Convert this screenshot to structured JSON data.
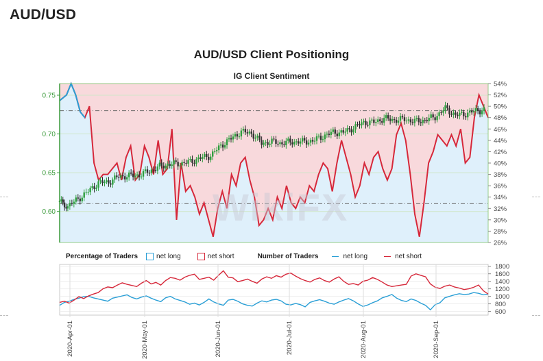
{
  "page": {
    "title": "AUD/USD",
    "watermark": "WikiFX"
  },
  "chart_data": [
    {
      "type": "candlestick+area",
      "title": "AUD/USD Client Positioning",
      "subtitle": "IG Client Sentiment",
      "left_axis": {
        "ticks": [
          "0.75",
          "0.70",
          "0.65",
          "0.60"
        ],
        "values": [
          0.75,
          0.7,
          0.65,
          0.6
        ],
        "ylim": [
          0.56,
          0.765
        ]
      },
      "right_axis": {
        "ticks": [
          "54%",
          "52%",
          "50%",
          "48%",
          "46%",
          "44%",
          "42%",
          "40%",
          "38%",
          "36%",
          "34%",
          "32%",
          "30%",
          "28%",
          "26%"
        ],
        "ylim": [
          26,
          54
        ]
      },
      "reference_levels": [
        0.73,
        0.61
      ],
      "price": [
        [
          0,
          0.612
        ],
        [
          4,
          0.607
        ],
        [
          9,
          0.616
        ],
        [
          14,
          0.626
        ],
        [
          19,
          0.637
        ],
        [
          24,
          0.638
        ],
        [
          29,
          0.645
        ],
        [
          34,
          0.646
        ],
        [
          39,
          0.647
        ],
        [
          44,
          0.652
        ],
        [
          49,
          0.658
        ],
        [
          54,
          0.661
        ],
        [
          59,
          0.662
        ],
        [
          64,
          0.664
        ],
        [
          69,
          0.669
        ],
        [
          74,
          0.672
        ],
        [
          79,
          0.685
        ],
        [
          84,
          0.694
        ],
        [
          89,
          0.703
        ],
        [
          94,
          0.701
        ],
        [
          99,
          0.688
        ],
        [
          104,
          0.69
        ],
        [
          109,
          0.688
        ],
        [
          114,
          0.69
        ],
        [
          119,
          0.69
        ],
        [
          124,
          0.691
        ],
        [
          129,
          0.697
        ],
        [
          134,
          0.702
        ],
        [
          139,
          0.702
        ],
        [
          144,
          0.708
        ],
        [
          149,
          0.715
        ],
        [
          154,
          0.715
        ],
        [
          159,
          0.72
        ],
        [
          164,
          0.718
        ],
        [
          169,
          0.719
        ],
        [
          174,
          0.716
        ],
        [
          179,
          0.718
        ],
        [
          184,
          0.722
        ],
        [
          189,
          0.733
        ],
        [
          194,
          0.724
        ],
        [
          199,
          0.726
        ],
        [
          204,
          0.73
        ],
        [
          209,
          0.731
        ]
      ],
      "net_long_pct": [
        [
          0,
          51
        ],
        [
          3,
          52
        ],
        [
          5,
          54
        ],
        [
          7,
          52
        ],
        [
          9,
          49
        ],
        [
          11,
          48
        ],
        [
          13,
          50
        ],
        [
          15,
          40
        ],
        [
          17,
          37
        ],
        [
          19,
          38
        ],
        [
          21,
          38
        ],
        [
          23,
          39
        ],
        [
          25,
          40
        ],
        [
          27,
          37
        ],
        [
          29,
          41
        ],
        [
          31,
          43
        ],
        [
          33,
          37
        ],
        [
          35,
          38
        ],
        [
          37,
          43
        ],
        [
          39,
          41
        ],
        [
          41,
          38
        ],
        [
          43,
          44
        ],
        [
          45,
          38
        ],
        [
          47,
          39
        ],
        [
          49,
          46
        ],
        [
          51,
          30
        ],
        [
          53,
          40
        ],
        [
          55,
          35
        ],
        [
          57,
          36
        ],
        [
          59,
          34
        ],
        [
          61,
          31
        ],
        [
          63,
          33
        ],
        [
          65,
          30
        ],
        [
          67,
          27
        ],
        [
          69,
          32
        ],
        [
          71,
          35
        ],
        [
          73,
          32
        ],
        [
          75,
          38
        ],
        [
          77,
          36
        ],
        [
          79,
          40
        ],
        [
          81,
          41
        ],
        [
          83,
          37
        ],
        [
          85,
          34
        ],
        [
          87,
          29
        ],
        [
          89,
          30
        ],
        [
          91,
          32
        ],
        [
          93,
          30
        ],
        [
          95,
          34
        ],
        [
          97,
          32
        ],
        [
          99,
          36
        ],
        [
          101,
          33
        ],
        [
          103,
          32
        ],
        [
          105,
          34
        ],
        [
          107,
          33
        ],
        [
          109,
          36
        ],
        [
          111,
          35
        ],
        [
          113,
          38
        ],
        [
          115,
          40
        ],
        [
          117,
          39
        ],
        [
          119,
          35
        ],
        [
          121,
          40
        ],
        [
          123,
          44
        ],
        [
          125,
          41
        ],
        [
          127,
          38
        ],
        [
          129,
          34
        ],
        [
          131,
          36
        ],
        [
          133,
          40
        ],
        [
          135,
          38
        ],
        [
          137,
          41
        ],
        [
          139,
          42
        ],
        [
          141,
          39
        ],
        [
          143,
          37
        ],
        [
          145,
          39
        ],
        [
          147,
          45
        ],
        [
          149,
          47
        ],
        [
          151,
          44
        ],
        [
          153,
          38
        ],
        [
          155,
          31
        ],
        [
          157,
          27
        ],
        [
          159,
          33
        ],
        [
          161,
          40
        ],
        [
          163,
          42
        ],
        [
          165,
          45
        ],
        [
          167,
          44
        ],
        [
          169,
          43
        ],
        [
          171,
          45
        ],
        [
          173,
          43
        ],
        [
          175,
          46
        ],
        [
          177,
          40
        ],
        [
          179,
          41
        ],
        [
          181,
          48
        ],
        [
          183,
          52
        ],
        [
          185,
          50
        ],
        [
          187,
          48
        ]
      ]
    },
    {
      "type": "line",
      "legend": {
        "pct_title": "Percentage of Traders",
        "count_title": "Number of Traders",
        "net_long": "net long",
        "net_short": "net short"
      },
      "x_ticks": [
        "2020-Apr-01",
        "2020-May-01",
        "2020-Jun-01",
        "2020-Jul-01",
        "2020-Aug-01",
        "2020-Sep-01"
      ],
      "y_ticks": [
        "1800",
        "1600",
        "1400",
        "1200",
        "1000",
        "800",
        "600"
      ],
      "ylim": [
        500,
        1850
      ],
      "series": [
        {
          "name": "net long",
          "color": "#2a9fd6",
          "values": [
            760,
            840,
            870,
            920,
            950,
            990,
            1000,
            960,
            930,
            900,
            870,
            950,
            980,
            1010,
            1040,
            970,
            930,
            980,
            1010,
            950,
            900,
            860,
            960,
            1000,
            930,
            890,
            850,
            790,
            820,
            770,
            840,
            930,
            850,
            800,
            760,
            900,
            920,
            870,
            800,
            760,
            740,
            820,
            880,
            850,
            900,
            920,
            880,
            790,
            770,
            810,
            780,
            720,
            840,
            880,
            910,
            870,
            820,
            790,
            850,
            900,
            940,
            880,
            800,
            730,
            770,
            830,
            880,
            960,
            1000,
            1050,
            950,
            890,
            860,
            930,
            890,
            820,
            760,
            640,
            780,
            830,
            960,
            1000,
            1040,
            1070,
            1050,
            1060,
            1100,
            1080,
            1040,
            1060
          ]
        },
        {
          "name": "net short",
          "color": "#d6283a",
          "values": [
            840,
            870,
            820,
            900,
            990,
            940,
            1010,
            1060,
            1100,
            1200,
            1250,
            1230,
            1300,
            1360,
            1320,
            1290,
            1260,
            1350,
            1420,
            1330,
            1370,
            1300,
            1420,
            1500,
            1480,
            1430,
            1510,
            1560,
            1590,
            1450,
            1480,
            1510,
            1430,
            1560,
            1680,
            1510,
            1490,
            1390,
            1420,
            1460,
            1400,
            1350,
            1460,
            1520,
            1480,
            1550,
            1510,
            1590,
            1620,
            1540,
            1470,
            1420,
            1380,
            1450,
            1490,
            1420,
            1380,
            1460,
            1520,
            1400,
            1320,
            1340,
            1300,
            1400,
            1430,
            1500,
            1450,
            1380,
            1300,
            1260,
            1280,
            1300,
            1320,
            1540,
            1600,
            1560,
            1520,
            1330,
            1240,
            1210,
            1270,
            1300,
            1250,
            1220,
            1180,
            1200,
            1240,
            1300,
            1150,
            1060
          ]
        }
      ]
    }
  ]
}
